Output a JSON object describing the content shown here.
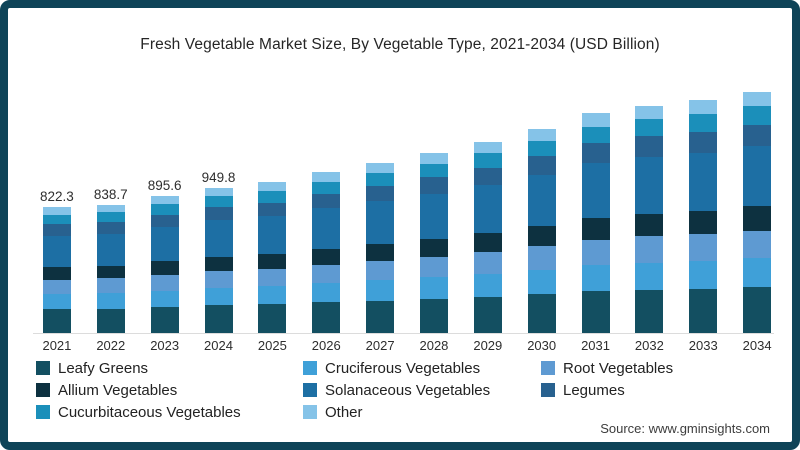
{
  "title": "Fresh Vegetable Market Size, By Vegetable Type, 2021-2034 (USD Billion)",
  "source": "Source: www.gminsights.com",
  "frame_border_color": "#0e4458",
  "chart_data": {
    "type": "bar",
    "stacked": true,
    "title": "Fresh Vegetable Market Size, By Vegetable Type, 2021-2034 (USD Billion)",
    "unit": "USD Billion",
    "xlabel": "",
    "ylabel": "",
    "grid": false,
    "legend_position": "bottom",
    "ylim": [
      0,
      1600
    ],
    "categories": [
      "2021",
      "2022",
      "2023",
      "2024",
      "2025",
      "2026",
      "2027",
      "2028",
      "2029",
      "2030",
      "2031",
      "2032",
      "2033",
      "2034"
    ],
    "totals": [
      822.3,
      838.7,
      895.6,
      949.8,
      985,
      1050,
      1110,
      1175,
      1250,
      1335,
      1435,
      1485,
      1520,
      1575
    ],
    "total_labels": [
      "822.3",
      "838.7",
      "895.6",
      "949.8",
      null,
      null,
      null,
      null,
      null,
      null,
      null,
      null,
      null,
      null
    ],
    "series": [
      {
        "name": "Leafy Greens",
        "color": "#134f61",
        "values": [
          156.2,
          159.4,
          170.2,
          180.5,
          187.2,
          199.5,
          210.9,
          223.3,
          237.5,
          253.7,
          272.7,
          282.2,
          288.8,
          299.3
        ]
      },
      {
        "name": "Cruciferous Vegetables",
        "color": "#3fa0d8",
        "values": [
          98.7,
          100.6,
          107.5,
          114.0,
          118.2,
          126.0,
          133.2,
          141.0,
          150.0,
          160.2,
          172.2,
          178.2,
          182.4,
          189.0
        ]
      },
      {
        "name": "Root Vegetables",
        "color": "#5e9ad2",
        "values": [
          94.6,
          96.5,
          103.0,
          109.2,
          113.3,
          120.7,
          127.6,
          135.1,
          143.8,
          153.5,
          165.0,
          170.8,
          174.8,
          181.1
        ]
      },
      {
        "name": "Allium Vegetables",
        "color": "#0d3140",
        "values": [
          82.2,
          83.9,
          89.6,
          95.0,
          98.5,
          105.0,
          111.0,
          117.5,
          125.0,
          133.5,
          143.5,
          148.5,
          152.0,
          157.5
        ]
      },
      {
        "name": "Solanaceous Vegetables",
        "color": "#1d6fa4",
        "values": [
          205.6,
          209.7,
          223.9,
          237.5,
          246.2,
          262.5,
          277.5,
          293.8,
          312.5,
          333.8,
          358.8,
          371.2,
          380.0,
          393.8
        ]
      },
      {
        "name": "Legumes",
        "color": "#28618f",
        "values": [
          74.0,
          75.5,
          80.6,
          85.5,
          88.6,
          94.5,
          99.9,
          105.8,
          112.5,
          120.2,
          129.2,
          133.6,
          136.8,
          141.8
        ]
      },
      {
        "name": "Cucurbitaceous Vegetables",
        "color": "#1b8fba",
        "values": [
          61.7,
          62.9,
          67.2,
          71.2,
          73.9,
          78.8,
          83.2,
          88.1,
          93.8,
          100.1,
          107.6,
          111.4,
          114.0,
          118.1
        ]
      },
      {
        "name": "Other",
        "color": "#85c3e8",
        "values": [
          49.3,
          50.3,
          53.7,
          57.0,
          59.1,
          63.0,
          66.6,
          70.5,
          75.0,
          80.1,
          86.1,
          89.1,
          91.2,
          94.5
        ]
      }
    ]
  }
}
